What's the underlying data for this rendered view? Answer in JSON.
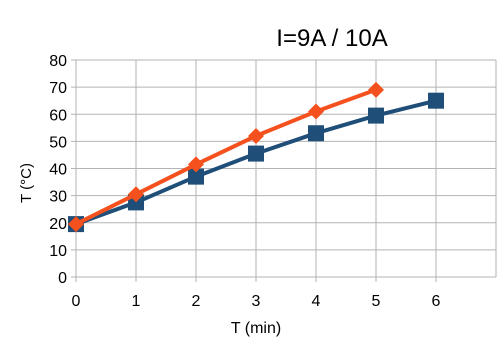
{
  "chart_data": {
    "type": "line",
    "title": "I=9A / 10A",
    "xlabel": "T (min)",
    "ylabel": "T (°C)",
    "xlim": [
      0,
      7
    ],
    "ylim": [
      0,
      80
    ],
    "x_ticks": [
      0,
      1,
      2,
      3,
      4,
      5,
      6
    ],
    "y_ticks": [
      0,
      10,
      20,
      30,
      40,
      50,
      60,
      70,
      80
    ],
    "grid": true,
    "legend": "none",
    "series": [
      {
        "color": "#1f4e79",
        "marker": "square",
        "x": [
          0,
          1,
          2,
          3,
          4,
          5,
          6
        ],
        "y": [
          19.5,
          27.5,
          37,
          45.5,
          53,
          59.5,
          65
        ]
      },
      {
        "color": "#f4511e",
        "marker": "diamond",
        "x": [
          0,
          1,
          2,
          3,
          4,
          5
        ],
        "y": [
          19.5,
          30.5,
          41.5,
          52,
          61,
          69
        ]
      }
    ]
  }
}
